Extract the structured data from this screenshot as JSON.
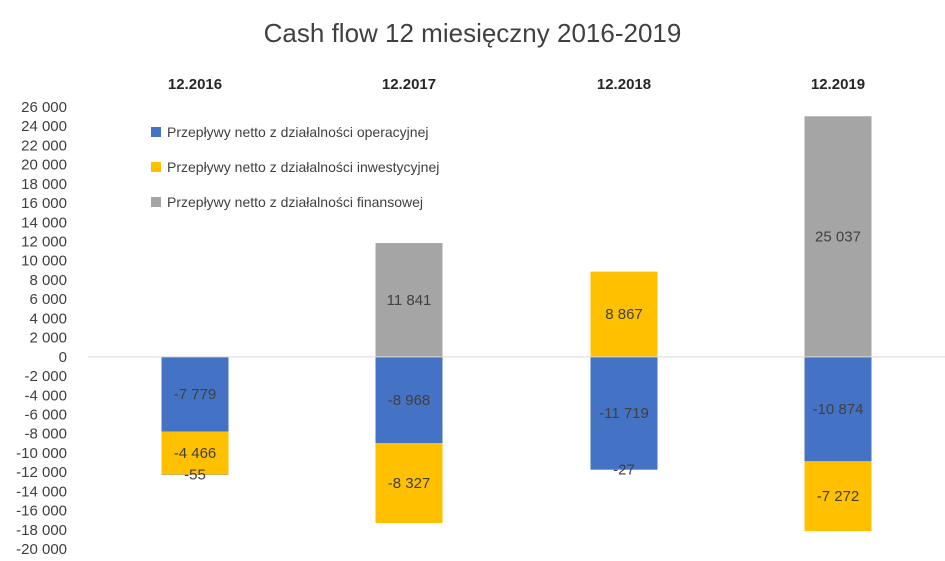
{
  "chart_data": {
    "type": "bar",
    "stacked": true,
    "title": "Cash flow 12 miesięczny 2016-2019",
    "categories": [
      "12.2016",
      "12.2017",
      "12.2018",
      "12.2019"
    ],
    "categories_position": "top",
    "series": [
      {
        "name": "Przepływy netto z działalności operacyjnej",
        "color": "#4472C4",
        "values": [
          -7779,
          -8968,
          -11719,
          -10874
        ],
        "labels": [
          "-7 779",
          "-8 968",
          "-11 719",
          "-10 874"
        ]
      },
      {
        "name": "Przepływy netto z działalności inwestycyjnej",
        "color": "#FFC000",
        "values": [
          -4466,
          -8327,
          8867,
          -7272
        ],
        "labels": [
          "-4 466",
          "-8 327",
          "8 867",
          "-7 272"
        ]
      },
      {
        "name": "Przepływy netto z działalności finansowej",
        "color": "#A5A5A5",
        "values": [
          -55,
          11841,
          -27,
          25037
        ],
        "labels": [
          "-55",
          "11 841",
          "-27",
          "25 037"
        ]
      }
    ],
    "ylim": [
      -20000,
      26000
    ],
    "yticks": [
      26000,
      24000,
      22000,
      20000,
      18000,
      16000,
      14000,
      12000,
      10000,
      8000,
      6000,
      4000,
      2000,
      0,
      -2000,
      -4000,
      -6000,
      -8000,
      -10000,
      -12000,
      -14000,
      -16000,
      -18000,
      -20000
    ],
    "ytick_labels": [
      "26 000",
      "24 000",
      "22 000",
      "20 000",
      "18 000",
      "16 000",
      "14 000",
      "12 000",
      "10 000",
      "8 000",
      "6 000",
      "4 000",
      "2 000",
      "0",
      "-2 000",
      "-4 000",
      "-6 000",
      "-8 000",
      "-10 000",
      "-12 000",
      "-14 000",
      "-16 000",
      "-18 000",
      "-20 000"
    ],
    "legend": "top-left",
    "grid": false
  }
}
